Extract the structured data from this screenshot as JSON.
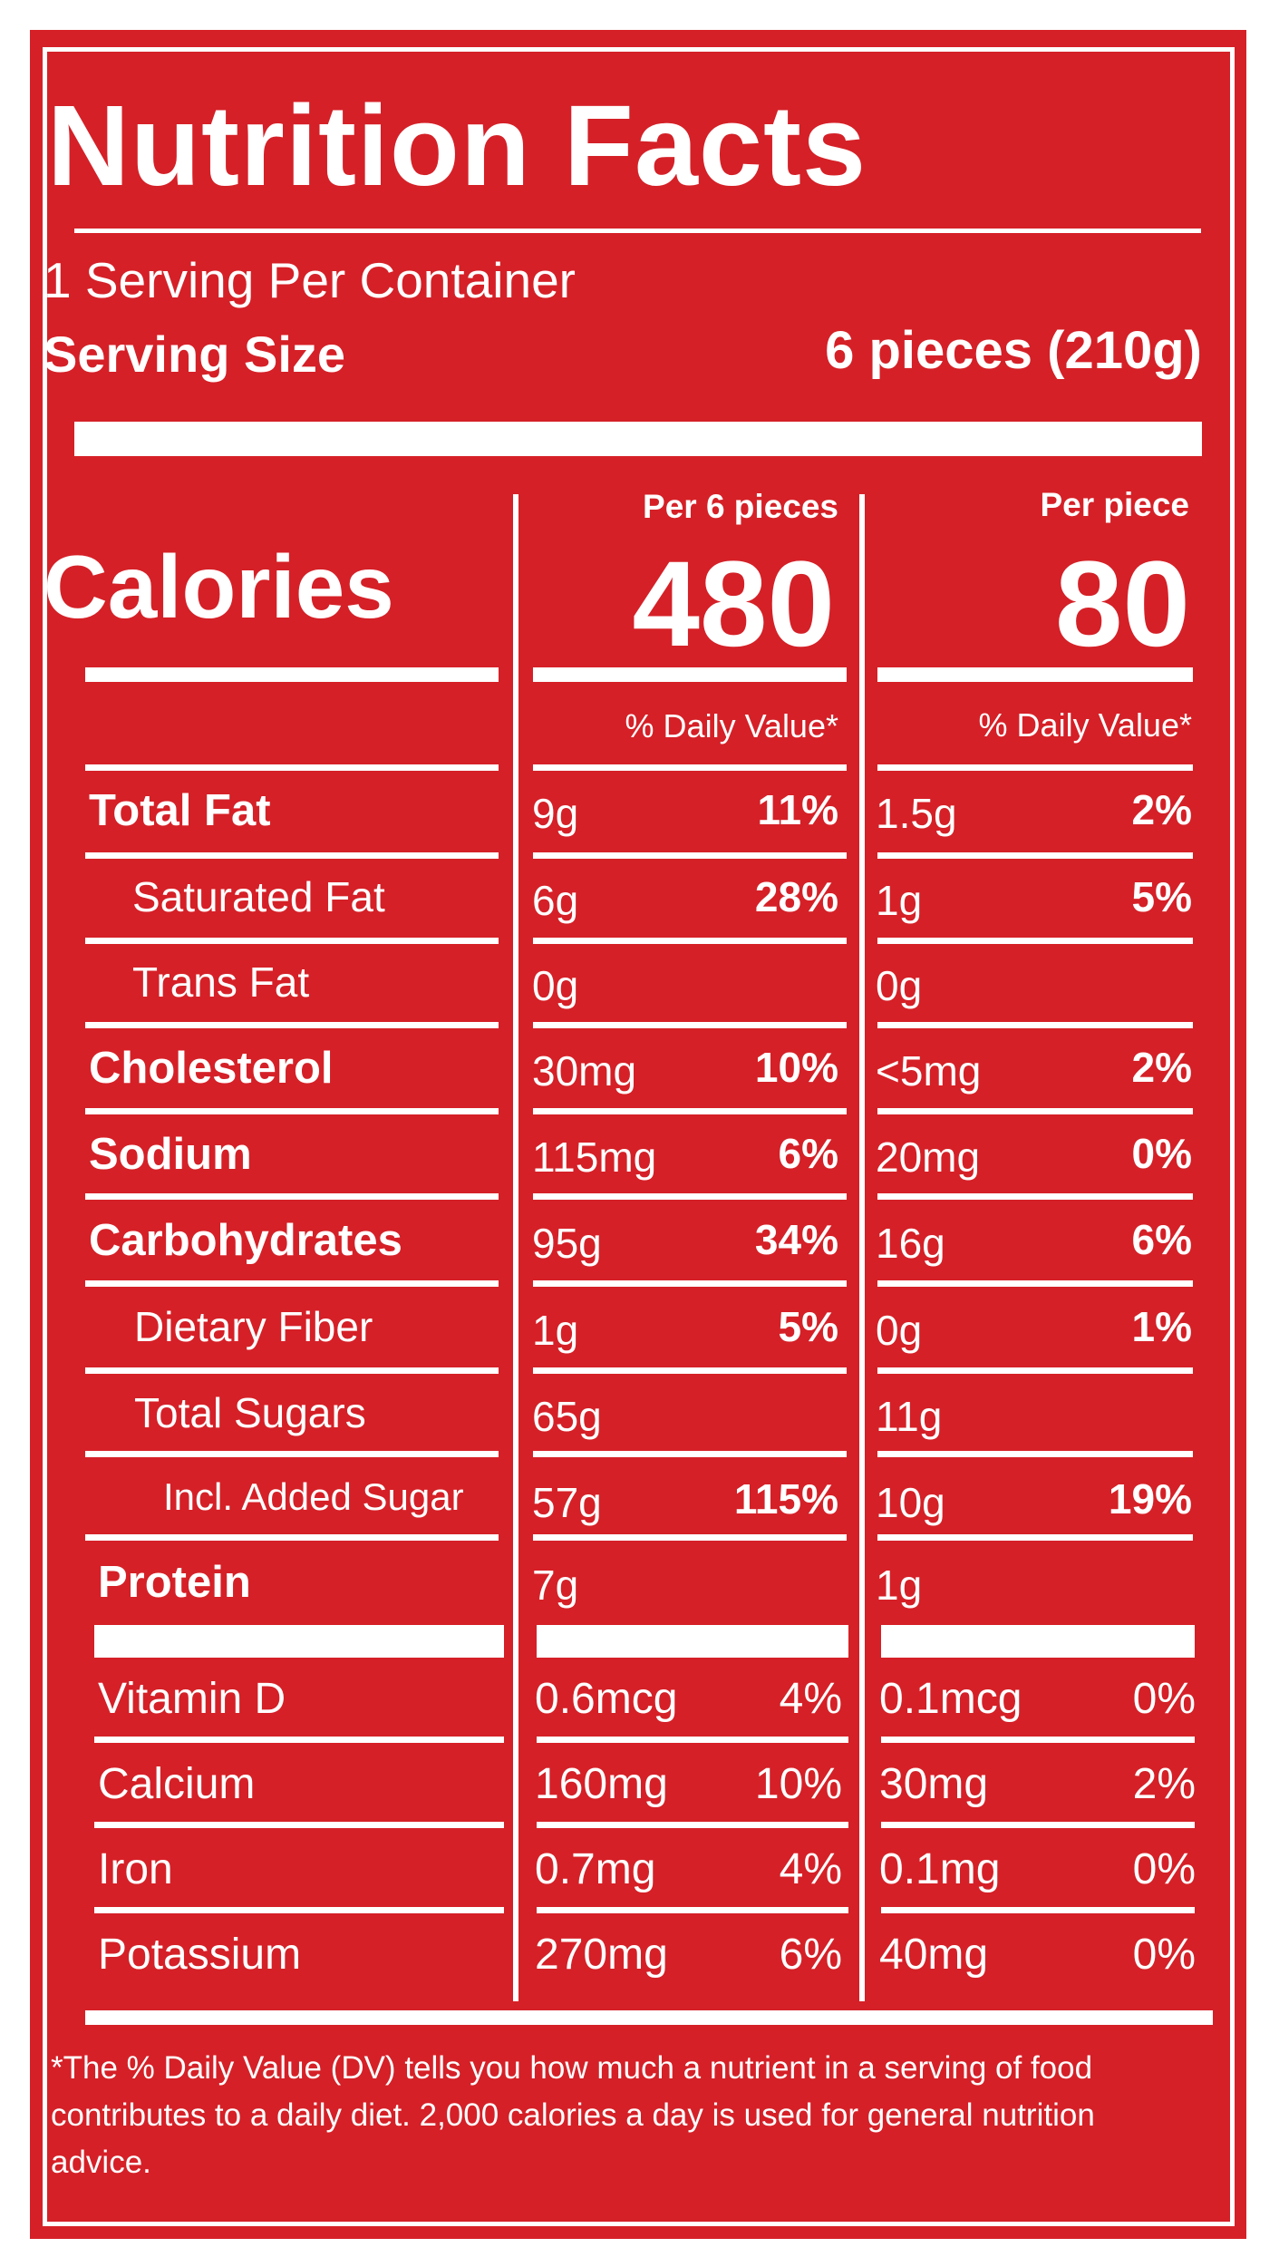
{
  "label": {
    "title": "Nutrition Facts",
    "servings_per_container": "1 Serving Per Container",
    "serving_size_label": "Serving Size",
    "serving_size_value": "6 pieces (210g)",
    "column_a_header": "Per 6 pieces",
    "column_b_header": "Per piece",
    "calories_label": "Calories",
    "calories_a": "480",
    "calories_b": "80",
    "dv_header": "% Daily Value*",
    "footnote": "*The % Daily Value (DV) tells you how much a nutrient in a serving of food contributes to a daily diet. 2,000 calories a day is used for general nutrition advice.",
    "colors": {
      "background": "#d52027",
      "text": "#ffffff"
    }
  },
  "nutrients": [
    {
      "name": "Total Fat",
      "a_amount": "9g",
      "a_dv": "11%",
      "b_amount": "1.5g",
      "b_dv": "2%"
    },
    {
      "name": "Saturated Fat",
      "a_amount": "6g",
      "a_dv": "28%",
      "b_amount": "1g",
      "b_dv": "5%"
    },
    {
      "name": "Trans Fat",
      "a_amount": "0g",
      "a_dv": "",
      "b_amount": "0g",
      "b_dv": ""
    },
    {
      "name": "Cholesterol",
      "a_amount": "30mg",
      "a_dv": "10%",
      "b_amount": "<5mg",
      "b_dv": "2%"
    },
    {
      "name": "Sodium",
      "a_amount": "115mg",
      "a_dv": "6%",
      "b_amount": "20mg",
      "b_dv": "0%"
    },
    {
      "name": "Carbohydrates",
      "a_amount": "95g",
      "a_dv": "34%",
      "b_amount": "16g",
      "b_dv": "6%"
    },
    {
      "name": "Dietary Fiber",
      "a_amount": "1g",
      "a_dv": "5%",
      "b_amount": "0g",
      "b_dv": "1%"
    },
    {
      "name": "Total Sugars",
      "a_amount": "65g",
      "a_dv": "",
      "b_amount": "11g",
      "b_dv": ""
    },
    {
      "name": "Incl. Added Sugar",
      "a_amount": "57g",
      "a_dv": "115%",
      "b_amount": "10g",
      "b_dv": "19%"
    },
    {
      "name": "Protein",
      "a_amount": "7g",
      "a_dv": "",
      "b_amount": "1g",
      "b_dv": ""
    }
  ],
  "micronutrients": [
    {
      "name": "Vitamin D",
      "a_amount": "0.6mcg",
      "a_dv": "4%",
      "b_amount": "0.1mcg",
      "b_dv": "0%"
    },
    {
      "name": "Calcium",
      "a_amount": "160mg",
      "a_dv": "10%",
      "b_amount": "30mg",
      "b_dv": "2%"
    },
    {
      "name": "Iron",
      "a_amount": "0.7mg",
      "a_dv": "4%",
      "b_amount": "0.1mg",
      "b_dv": "0%"
    },
    {
      "name": "Potassium",
      "a_amount": "270mg",
      "a_dv": "6%",
      "b_amount": "40mg",
      "b_dv": "0%"
    }
  ]
}
